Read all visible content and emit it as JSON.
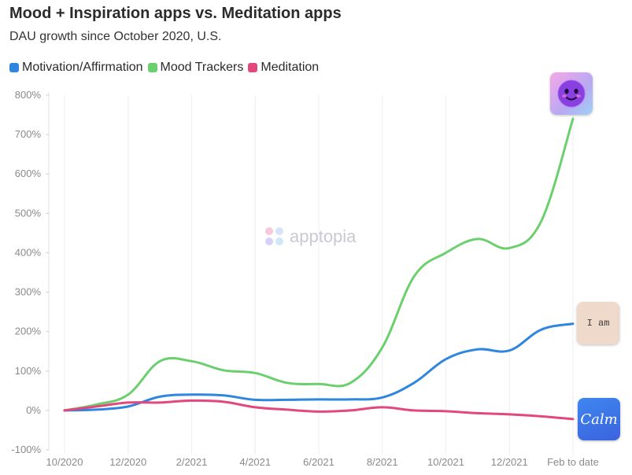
{
  "header": {
    "title": "Mood + Inspiration apps vs. Meditation apps",
    "subtitle": "DAU growth since October 2020, U.S."
  },
  "legend": [
    {
      "label": "Motivation/Affirmation",
      "color": "#2e86de"
    },
    {
      "label": "Mood Trackers",
      "color": "#6ccf6e"
    },
    {
      "label": "Meditation",
      "color": "#e2487d"
    }
  ],
  "watermark": {
    "text": "apptopia"
  },
  "app_icons": {
    "mood_tracker": {
      "icon": "purple-smiley-face-icon"
    },
    "iam": {
      "label": "I am"
    },
    "calm": {
      "label": "Calm"
    }
  },
  "chart_data": {
    "type": "line",
    "title": "Mood + Inspiration apps vs. Meditation apps",
    "subtitle": "DAU growth since October 2020, U.S.",
    "x": [
      "10/2020",
      "11/2020",
      "12/2020",
      "1/2021",
      "2/2021",
      "3/2021",
      "4/2021",
      "5/2021",
      "6/2021",
      "7/2021",
      "8/2021",
      "9/2021",
      "10/2021",
      "11/2021",
      "12/2021",
      "1/2022",
      "Feb to date"
    ],
    "x_tick_labels": [
      "10/2020",
      "12/2020",
      "2/2021",
      "4/2021",
      "6/2021",
      "8/2021",
      "10/2021",
      "12/2021",
      "Feb to date"
    ],
    "y_ticks": [
      -100,
      0,
      100,
      200,
      300,
      400,
      500,
      600,
      700,
      800
    ],
    "y_tick_suffix": "%",
    "ylim": [
      -100,
      800
    ],
    "series": [
      {
        "name": "Motivation/Affirmation",
        "color": "#2e86de",
        "values": [
          0,
          2,
          10,
          35,
          40,
          38,
          27,
          27,
          28,
          28,
          33,
          70,
          130,
          155,
          152,
          205,
          220
        ]
      },
      {
        "name": "Mood Trackers",
        "color": "#6ccf6e",
        "values": [
          0,
          15,
          40,
          125,
          125,
          102,
          95,
          70,
          67,
          70,
          160,
          340,
          400,
          435,
          412,
          480,
          740
        ]
      },
      {
        "name": "Meditation",
        "color": "#e2487d",
        "values": [
          0,
          10,
          20,
          20,
          25,
          22,
          8,
          2,
          -3,
          0,
          8,
          0,
          -2,
          -7,
          -10,
          -15,
          -22
        ]
      }
    ]
  }
}
